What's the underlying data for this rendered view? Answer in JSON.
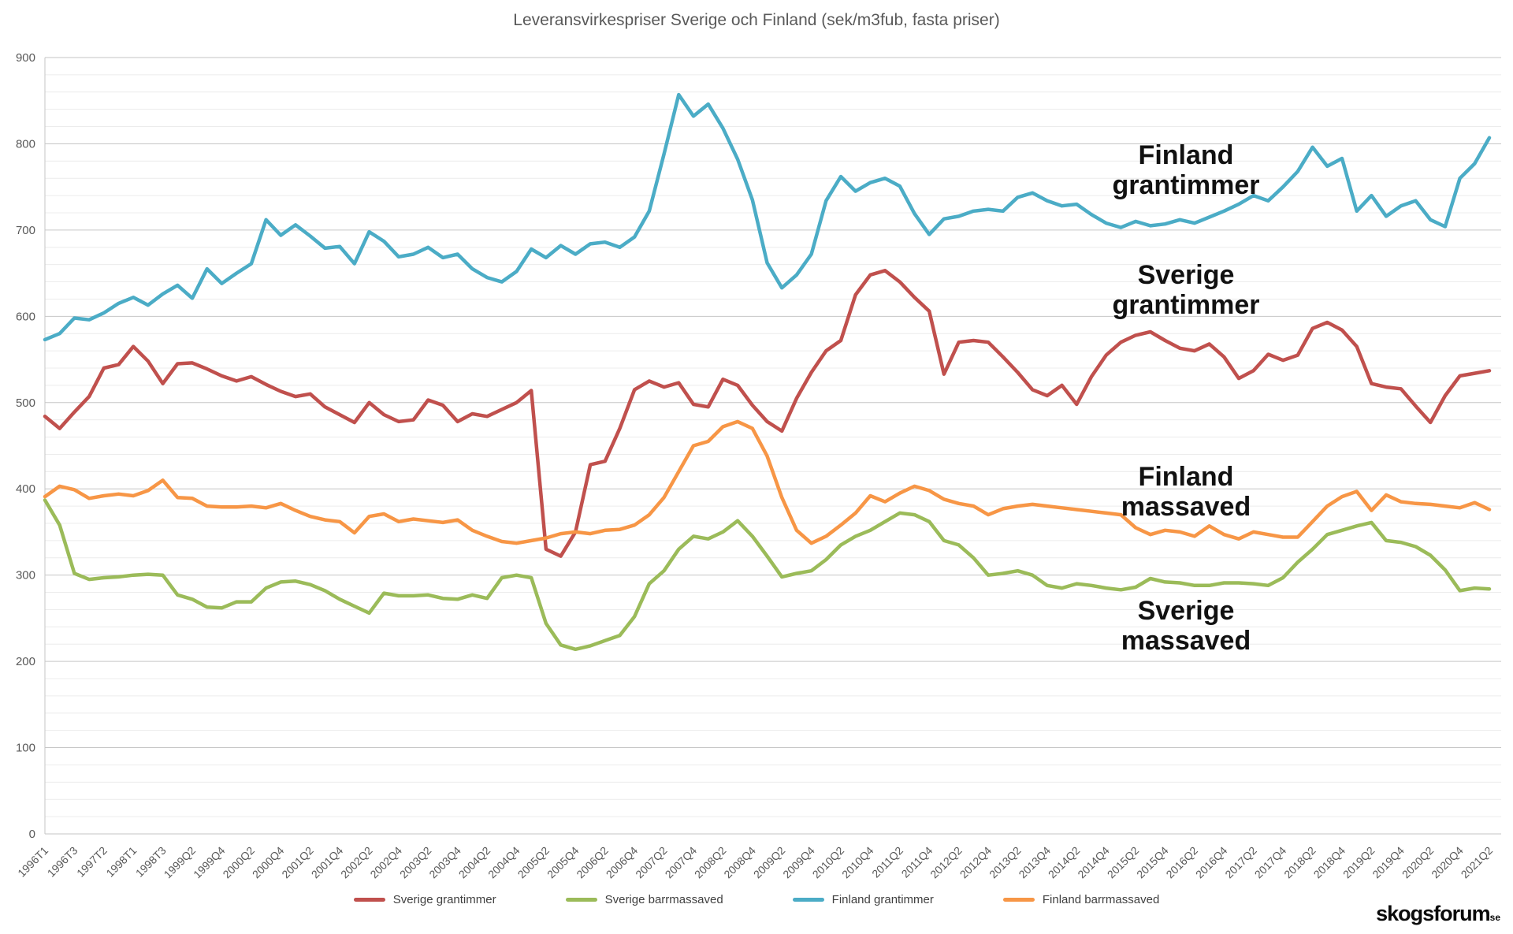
{
  "title": "Leveransvirkespriser Sverige och Finland (sek/m3fub, fasta priser)",
  "watermark": {
    "brand": "skogsforum",
    "tld": "se"
  },
  "annotations": [
    {
      "line1": "Finland",
      "line2": "grantimmer"
    },
    {
      "line1": "Sverige",
      "line2": "grantimmer"
    },
    {
      "line1": "Finland",
      "line2": "massaved"
    },
    {
      "line1": "Sverige",
      "line2": "massaved"
    }
  ],
  "colors": {
    "sverige_grantimmer": "#C0504D",
    "sverige_barrmassaved": "#9BBB59",
    "finland_grantimmer": "#4BACC6",
    "finland_barrmassaved": "#F79646",
    "grid_minor": "#ECECEC",
    "grid_major": "#C6C6C6",
    "axis_text": "#595959"
  },
  "chart_data": {
    "type": "line",
    "title": "Leveransvirkespriser Sverige och Finland (sek/m3fub, fasta priser)",
    "xlabel": "",
    "ylabel": "",
    "ylim": [
      0,
      900
    ],
    "y_ticks": [
      0,
      100,
      200,
      300,
      400,
      500,
      600,
      700,
      800,
      900
    ],
    "grid": {
      "minor_step": 20,
      "major_step": 100,
      "horizontal_only": true
    },
    "legend_position": "bottom",
    "x_tick_labels": [
      "1996T1",
      "1996T3",
      "1997T2",
      "1998T1",
      "1998T3",
      "1999Q2",
      "1999Q4",
      "2000Q2",
      "2000Q4",
      "2001Q2",
      "2001Q4",
      "2002Q2",
      "2002Q4",
      "2003Q2",
      "2003Q4",
      "2004Q2",
      "2004Q4",
      "2005Q2",
      "2005Q4",
      "2006Q2",
      "2006Q4",
      "2007Q2",
      "2007Q4",
      "2008Q2",
      "2008Q4",
      "2009Q2",
      "2009Q4",
      "2010Q2",
      "2010Q4",
      "2011Q2",
      "2011Q4",
      "2012Q2",
      "2012Q4",
      "2013Q2",
      "2013Q4",
      "2014Q2",
      "2014Q4",
      "2015Q2",
      "2015Q4",
      "2016Q2",
      "2016Q4",
      "2017Q2",
      "2017Q4",
      "2018Q2",
      "2018Q4",
      "2019Q2",
      "2019Q4",
      "2020Q2",
      "2020Q4",
      "2021Q2"
    ],
    "categories": [
      "1996T1",
      "1996T2",
      "1996T3",
      "1997T1",
      "1997T2",
      "1997T3",
      "1998T1",
      "1998T2",
      "1998T3",
      "1999Q1",
      "1999Q2",
      "1999Q3",
      "1999Q4",
      "2000Q1",
      "2000Q2",
      "2000Q3",
      "2000Q4",
      "2001Q1",
      "2001Q2",
      "2001Q3",
      "2001Q4",
      "2002Q1",
      "2002Q2",
      "2002Q3",
      "2002Q4",
      "2003Q1",
      "2003Q2",
      "2003Q3",
      "2003Q4",
      "2004Q1",
      "2004Q2",
      "2004Q3",
      "2004Q4",
      "2005Q1",
      "2005Q2",
      "2005Q3",
      "2005Q4",
      "2006Q1",
      "2006Q2",
      "2006Q3",
      "2006Q4",
      "2007Q1",
      "2007Q2",
      "2007Q3",
      "2007Q4",
      "2008Q1",
      "2008Q2",
      "2008Q3",
      "2008Q4",
      "2009Q1",
      "2009Q2",
      "2009Q3",
      "2009Q4",
      "2010Q1",
      "2010Q2",
      "2010Q3",
      "2010Q4",
      "2011Q1",
      "2011Q2",
      "2011Q3",
      "2011Q4",
      "2012Q1",
      "2012Q2",
      "2012Q3",
      "2012Q4",
      "2013Q1",
      "2013Q2",
      "2013Q3",
      "2013Q4",
      "2014Q1",
      "2014Q2",
      "2014Q3",
      "2014Q4",
      "2015Q1",
      "2015Q2",
      "2015Q3",
      "2015Q4",
      "2016Q1",
      "2016Q2",
      "2016Q3",
      "2016Q4",
      "2017Q1",
      "2017Q2",
      "2017Q3",
      "2017Q4",
      "2018Q1",
      "2018Q2",
      "2018Q3",
      "2018Q4",
      "2019Q1",
      "2019Q2",
      "2019Q3",
      "2019Q4",
      "2020Q1",
      "2020Q2",
      "2020Q3",
      "2020Q4",
      "2021Q1",
      "2021Q2"
    ],
    "series": [
      {
        "name": "Sverige grantimmer",
        "color": "#C0504D",
        "values": [
          484,
          470,
          489,
          507,
          540,
          544,
          565,
          548,
          522,
          545,
          546,
          539,
          531,
          525,
          530,
          521,
          513,
          507,
          510,
          495,
          486,
          477,
          500,
          486,
          478,
          480,
          503,
          497,
          478,
          487,
          484,
          492,
          500,
          514,
          330,
          322,
          350,
          428,
          432,
          470,
          515,
          525,
          518,
          523,
          498,
          495,
          527,
          520,
          497,
          478,
          467,
          505,
          535,
          560,
          572,
          625,
          648,
          653,
          640,
          622,
          606,
          533,
          570,
          572,
          570,
          553,
          535,
          515,
          508,
          520,
          498,
          530,
          555,
          570,
          578,
          582,
          572,
          563,
          560,
          568,
          553,
          528,
          537,
          556,
          549,
          555,
          586,
          593,
          584,
          565,
          522,
          518,
          516,
          496,
          477,
          508,
          531,
          534,
          537
        ]
      },
      {
        "name": "Sverige barrmassaved",
        "color": "#9BBB59",
        "values": [
          387,
          358,
          302,
          295,
          297,
          298,
          300,
          301,
          300,
          277,
          272,
          263,
          262,
          269,
          269,
          285,
          292,
          293,
          289,
          282,
          272,
          264,
          256,
          279,
          276,
          276,
          277,
          273,
          272,
          277,
          273,
          297,
          300,
          297,
          244,
          219,
          214,
          218,
          224,
          230,
          252,
          290,
          305,
          330,
          345,
          342,
          350,
          363,
          345,
          322,
          298,
          302,
          305,
          318,
          335,
          345,
          352,
          362,
          372,
          370,
          362,
          340,
          335,
          320,
          300,
          302,
          305,
          300,
          288,
          285,
          290,
          288,
          285,
          283,
          286,
          296,
          292,
          291,
          288,
          288,
          291,
          291,
          290,
          288,
          297,
          315,
          330,
          347,
          352,
          357,
          361,
          340,
          338,
          333,
          323,
          306,
          282,
          285,
          284
        ]
      },
      {
        "name": "Finland grantimmer",
        "color": "#4BACC6",
        "values": [
          573,
          580,
          598,
          596,
          604,
          615,
          622,
          613,
          626,
          636,
          621,
          655,
          638,
          650,
          661,
          712,
          694,
          706,
          693,
          679,
          681,
          661,
          698,
          687,
          669,
          672,
          680,
          668,
          672,
          655,
          645,
          640,
          652,
          678,
          668,
          682,
          672,
          684,
          686,
          680,
          692,
          722,
          788,
          857,
          832,
          846,
          818,
          782,
          735,
          662,
          633,
          648,
          672,
          734,
          762,
          745,
          755,
          760,
          751,
          719,
          695,
          713,
          716,
          722,
          724,
          722,
          738,
          743,
          734,
          728,
          730,
          718,
          708,
          703,
          710,
          705,
          707,
          712,
          708,
          715,
          722,
          730,
          740,
          734,
          750,
          768,
          796,
          774,
          783,
          722,
          740,
          716,
          728,
          734,
          712,
          704,
          760,
          777,
          807
        ]
      },
      {
        "name": "Finland barrmassaved",
        "color": "#F79646",
        "values": [
          391,
          403,
          399,
          389,
          392,
          394,
          392,
          398,
          410,
          390,
          389,
          380,
          379,
          379,
          380,
          378,
          383,
          375,
          368,
          364,
          362,
          349,
          368,
          371,
          362,
          365,
          363,
          361,
          364,
          352,
          345,
          339,
          337,
          340,
          343,
          348,
          350,
          348,
          352,
          353,
          358,
          370,
          390,
          420,
          450,
          455,
          472,
          478,
          470,
          438,
          390,
          352,
          337,
          345,
          358,
          372,
          392,
          385,
          395,
          403,
          398,
          388,
          383,
          380,
          370,
          377,
          380,
          382,
          380,
          378,
          376,
          374,
          372,
          370,
          355,
          347,
          352,
          350,
          345,
          357,
          347,
          342,
          350,
          347,
          344,
          344,
          362,
          380,
          391,
          397,
          375,
          393,
          385,
          383,
          382,
          380,
          378,
          384,
          376
        ]
      }
    ]
  }
}
